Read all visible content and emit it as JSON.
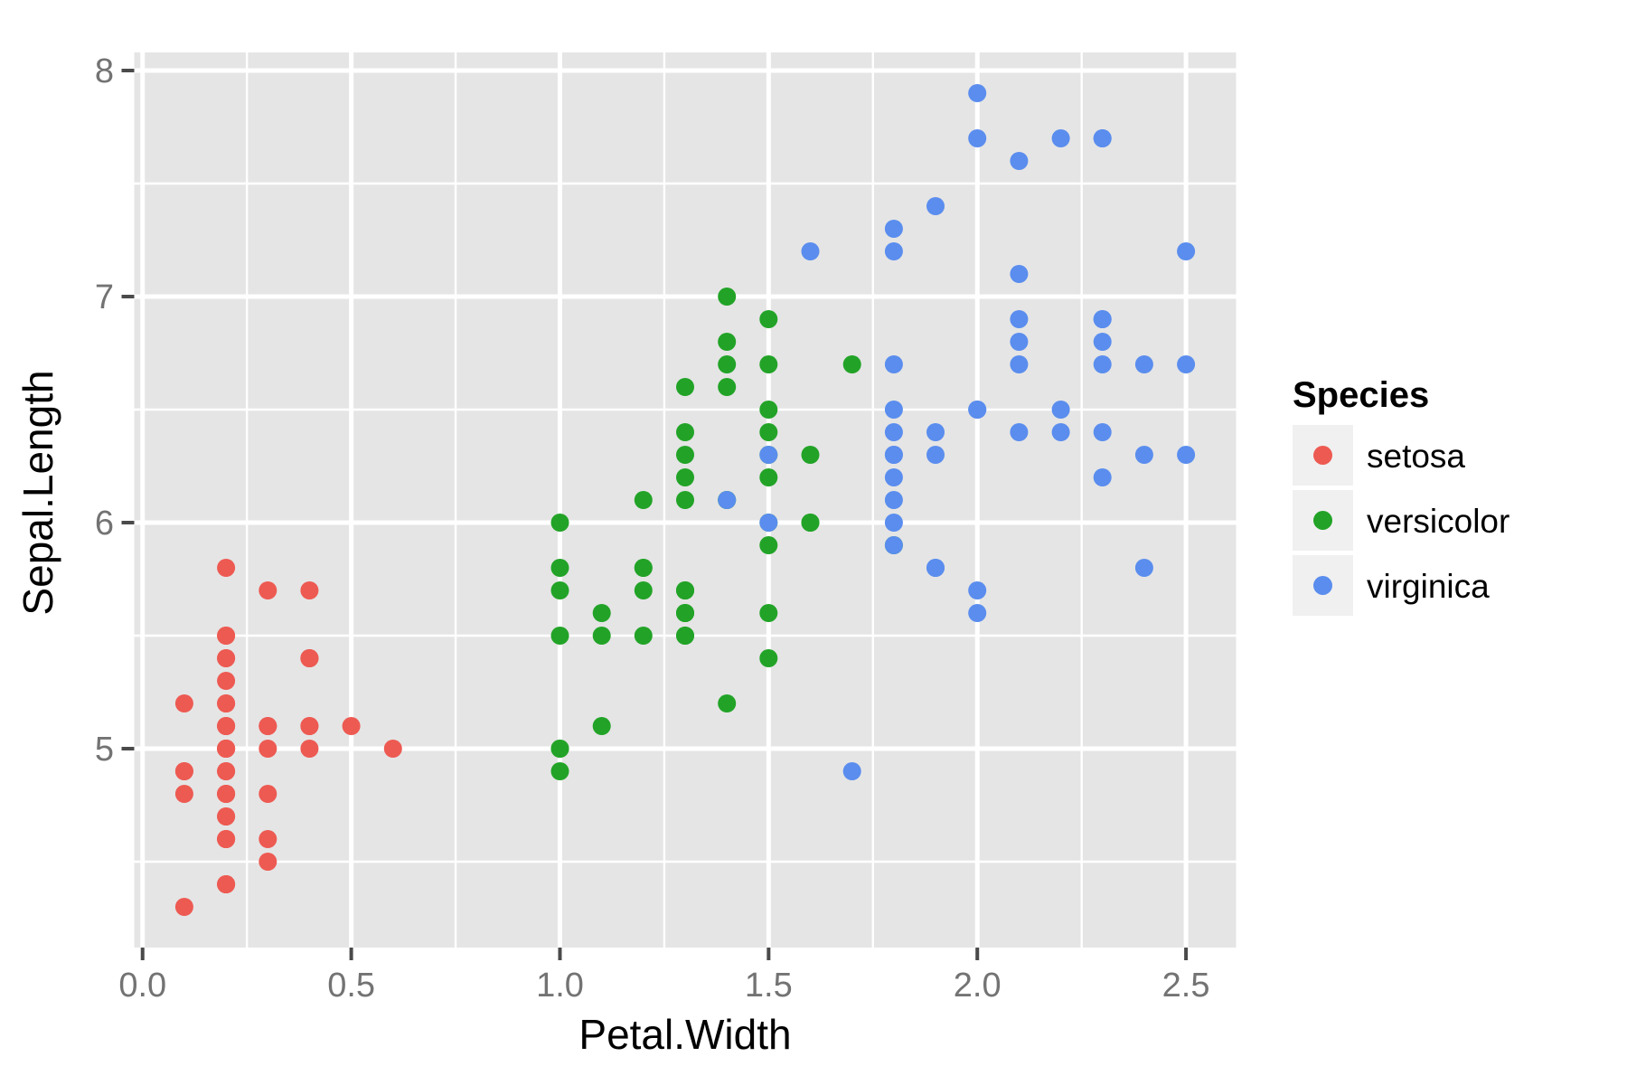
{
  "chart_data": {
    "type": "scatter",
    "title": "",
    "xlabel": "Petal.Width",
    "ylabel": "Sepal.Length",
    "xlim": [
      -0.02,
      2.62
    ],
    "ylim": [
      4.12,
      8.08
    ],
    "grid": true,
    "x_ticks": [
      0.0,
      0.5,
      1.0,
      1.5,
      2.0,
      2.5
    ],
    "x_tick_labels": [
      "0.0",
      "0.5",
      "1.0",
      "1.5",
      "2.0",
      "2.5"
    ],
    "x_minor_ticks": [
      0.25,
      0.75,
      1.25,
      1.75,
      2.25
    ],
    "y_ticks": [
      5,
      6,
      7,
      8
    ],
    "y_tick_labels": [
      "5",
      "6",
      "7",
      "8"
    ],
    "y_minor_ticks": [
      4.5,
      5.5,
      6.5,
      7.5
    ],
    "legend": {
      "title": "Species",
      "position": "right",
      "entries": [
        "setosa",
        "versicolor",
        "virginica"
      ]
    },
    "style": {
      "panel_bg": "#E5E5E5",
      "grid_color": "#FFFFFF",
      "legend_key_bg": "#F0F0F0",
      "tick_color": "#4A4A4A",
      "tick_label_color": "#737373",
      "axis_title_color": "#000000"
    },
    "series": [
      {
        "name": "setosa",
        "color": "#ED5A52",
        "points": [
          [
            0.2,
            5.1
          ],
          [
            0.2,
            4.9
          ],
          [
            0.2,
            4.7
          ],
          [
            0.2,
            4.6
          ],
          [
            0.2,
            5.0
          ],
          [
            0.4,
            5.4
          ],
          [
            0.3,
            4.6
          ],
          [
            0.2,
            5.0
          ],
          [
            0.2,
            4.4
          ],
          [
            0.1,
            4.9
          ],
          [
            0.2,
            5.4
          ],
          [
            0.2,
            4.8
          ],
          [
            0.1,
            4.8
          ],
          [
            0.1,
            4.3
          ],
          [
            0.2,
            5.8
          ],
          [
            0.4,
            5.7
          ],
          [
            0.4,
            5.4
          ],
          [
            0.3,
            5.1
          ],
          [
            0.3,
            5.7
          ],
          [
            0.3,
            5.1
          ],
          [
            0.2,
            5.4
          ],
          [
            0.4,
            5.1
          ],
          [
            0.2,
            4.6
          ],
          [
            0.5,
            5.1
          ],
          [
            0.2,
            4.8
          ],
          [
            0.2,
            5.0
          ],
          [
            0.4,
            5.0
          ],
          [
            0.2,
            5.2
          ],
          [
            0.2,
            5.2
          ],
          [
            0.2,
            4.7
          ],
          [
            0.2,
            4.8
          ],
          [
            0.4,
            5.4
          ],
          [
            0.1,
            5.2
          ],
          [
            0.2,
            5.5
          ],
          [
            0.2,
            4.9
          ],
          [
            0.2,
            5.0
          ],
          [
            0.2,
            5.5
          ],
          [
            0.1,
            4.9
          ],
          [
            0.2,
            4.4
          ],
          [
            0.2,
            5.1
          ],
          [
            0.3,
            5.0
          ],
          [
            0.3,
            4.5
          ],
          [
            0.2,
            4.4
          ],
          [
            0.6,
            5.0
          ],
          [
            0.4,
            5.1
          ],
          [
            0.3,
            4.8
          ],
          [
            0.2,
            5.1
          ],
          [
            0.2,
            4.6
          ],
          [
            0.2,
            5.3
          ],
          [
            0.2,
            5.0
          ]
        ]
      },
      {
        "name": "versicolor",
        "color": "#22A327",
        "points": [
          [
            1.4,
            7.0
          ],
          [
            1.5,
            6.4
          ],
          [
            1.5,
            6.9
          ],
          [
            1.3,
            5.5
          ],
          [
            1.5,
            6.5
          ],
          [
            1.3,
            5.7
          ],
          [
            1.6,
            6.3
          ],
          [
            1.0,
            4.9
          ],
          [
            1.3,
            6.6
          ],
          [
            1.4,
            5.2
          ],
          [
            1.0,
            5.0
          ],
          [
            1.5,
            5.9
          ],
          [
            1.0,
            6.0
          ],
          [
            1.4,
            6.1
          ],
          [
            1.3,
            5.6
          ],
          [
            1.4,
            6.7
          ],
          [
            1.5,
            5.6
          ],
          [
            1.0,
            5.8
          ],
          [
            1.5,
            6.2
          ],
          [
            1.1,
            5.6
          ],
          [
            1.8,
            5.9
          ],
          [
            1.3,
            6.1
          ],
          [
            1.5,
            6.3
          ],
          [
            1.2,
            6.1
          ],
          [
            1.3,
            6.4
          ],
          [
            1.4,
            6.6
          ],
          [
            1.4,
            6.8
          ],
          [
            1.7,
            6.7
          ],
          [
            1.5,
            6.0
          ],
          [
            1.0,
            5.7
          ],
          [
            1.1,
            5.5
          ],
          [
            1.0,
            5.5
          ],
          [
            1.2,
            5.8
          ],
          [
            1.6,
            6.0
          ],
          [
            1.5,
            5.4
          ],
          [
            1.6,
            6.0
          ],
          [
            1.5,
            6.7
          ],
          [
            1.3,
            6.3
          ],
          [
            1.3,
            5.6
          ],
          [
            1.3,
            5.5
          ],
          [
            1.2,
            5.5
          ],
          [
            1.4,
            6.1
          ],
          [
            1.2,
            5.8
          ],
          [
            1.0,
            5.0
          ],
          [
            1.3,
            5.6
          ],
          [
            1.2,
            5.7
          ],
          [
            1.3,
            5.7
          ],
          [
            1.3,
            6.2
          ],
          [
            1.1,
            5.1
          ],
          [
            1.3,
            5.7
          ]
        ]
      },
      {
        "name": "virginica",
        "color": "#5A8DEE",
        "points": [
          [
            2.5,
            6.3
          ],
          [
            1.9,
            5.8
          ],
          [
            2.1,
            7.1
          ],
          [
            1.8,
            6.3
          ],
          [
            2.2,
            6.5
          ],
          [
            2.1,
            7.6
          ],
          [
            1.7,
            4.9
          ],
          [
            1.8,
            7.3
          ],
          [
            1.8,
            6.7
          ],
          [
            2.5,
            7.2
          ],
          [
            2.0,
            6.5
          ],
          [
            1.9,
            6.4
          ],
          [
            2.1,
            6.8
          ],
          [
            2.0,
            5.7
          ],
          [
            2.4,
            5.8
          ],
          [
            2.3,
            6.4
          ],
          [
            1.8,
            6.5
          ],
          [
            2.2,
            7.7
          ],
          [
            2.3,
            7.7
          ],
          [
            1.5,
            6.0
          ],
          [
            2.3,
            6.9
          ],
          [
            2.0,
            5.6
          ],
          [
            2.0,
            7.7
          ],
          [
            1.8,
            6.3
          ],
          [
            2.1,
            6.7
          ],
          [
            1.8,
            7.2
          ],
          [
            1.8,
            6.2
          ],
          [
            1.8,
            6.1
          ],
          [
            2.1,
            6.4
          ],
          [
            1.6,
            7.2
          ],
          [
            1.9,
            7.4
          ],
          [
            2.0,
            7.9
          ],
          [
            2.2,
            6.4
          ],
          [
            1.5,
            6.3
          ],
          [
            1.4,
            6.1
          ],
          [
            2.3,
            7.7
          ],
          [
            2.4,
            6.3
          ],
          [
            1.8,
            6.4
          ],
          [
            1.8,
            6.0
          ],
          [
            2.1,
            6.9
          ],
          [
            2.4,
            6.7
          ],
          [
            2.3,
            6.9
          ],
          [
            1.9,
            5.8
          ],
          [
            2.3,
            6.8
          ],
          [
            2.5,
            6.7
          ],
          [
            2.3,
            6.7
          ],
          [
            1.9,
            6.3
          ],
          [
            2.0,
            6.5
          ],
          [
            2.3,
            6.2
          ],
          [
            1.8,
            5.9
          ]
        ]
      }
    ]
  }
}
